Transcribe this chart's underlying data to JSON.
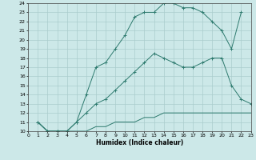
{
  "xlabel": "Humidex (Indice chaleur)",
  "bg_color": "#cce8e8",
  "grid_color": "#aacccc",
  "line_color": "#2d7a6e",
  "line1_x": [
    1,
    2,
    3,
    4,
    5,
    6,
    7,
    8,
    9,
    10,
    11,
    12,
    13,
    14,
    15,
    16,
    17,
    18,
    19,
    20,
    21,
    22
  ],
  "line1_y": [
    11,
    10,
    10,
    10,
    11,
    14,
    17,
    17.5,
    19,
    20.5,
    22.5,
    23,
    23,
    24,
    24,
    23.5,
    23.5,
    23,
    22,
    21,
    19,
    23
  ],
  "line2_x": [
    1,
    2,
    3,
    4,
    5,
    6,
    7,
    8,
    9,
    10,
    11,
    12,
    13,
    14,
    15,
    16,
    17,
    18,
    19,
    20,
    21,
    22,
    23
  ],
  "line2_y": [
    11,
    10,
    10,
    10,
    11,
    12,
    13,
    13.5,
    14.5,
    15.5,
    16.5,
    17.5,
    18.5,
    18,
    17.5,
    17,
    17,
    17.5,
    18,
    18,
    15,
    13.5,
    13
  ],
  "line3_x": [
    1,
    2,
    3,
    4,
    5,
    6,
    7,
    8,
    9,
    10,
    11,
    12,
    13,
    14,
    15,
    16,
    17,
    18,
    19,
    20,
    21,
    22,
    23
  ],
  "line3_y": [
    11,
    10,
    10,
    10,
    10,
    10,
    10.5,
    10.5,
    11,
    11,
    11,
    11.5,
    11.5,
    12,
    12,
    12,
    12,
    12,
    12,
    12,
    12,
    12,
    12
  ],
  "xlim": [
    0,
    23
  ],
  "ylim": [
    10,
    24
  ],
  "xticks": [
    0,
    1,
    2,
    3,
    4,
    5,
    6,
    7,
    8,
    9,
    10,
    11,
    12,
    13,
    14,
    15,
    16,
    17,
    18,
    19,
    20,
    21,
    22,
    23
  ],
  "yticks": [
    10,
    11,
    12,
    13,
    14,
    15,
    16,
    17,
    18,
    19,
    20,
    21,
    22,
    23,
    24
  ],
  "xlabel_fontsize": 5.5,
  "tick_fontsize": 4.5
}
